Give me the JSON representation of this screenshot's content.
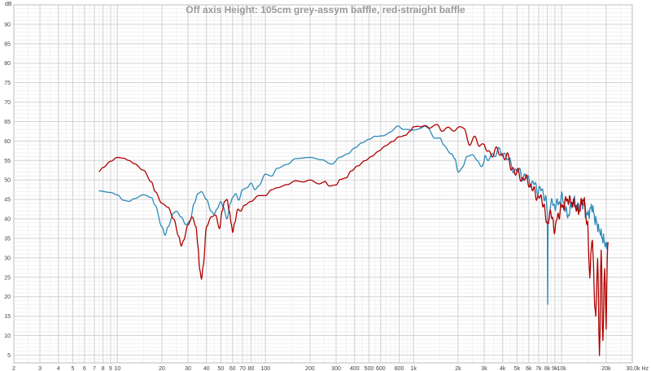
{
  "chart_data": {
    "type": "line",
    "title": "Off axis Height: 105cm grey-assym baffle, red-straight baffle",
    "xlabel": "Hz",
    "ylabel": "dB",
    "x_scale": "log",
    "xlim": [
      2,
      30000
    ],
    "ylim": [
      3,
      95
    ],
    "grid": true,
    "x_tick_labels": [
      {
        "value": 2,
        "label": "2"
      },
      {
        "value": 3,
        "label": "3"
      },
      {
        "value": 4,
        "label": "4"
      },
      {
        "value": 5,
        "label": "5"
      },
      {
        "value": 6,
        "label": "6"
      },
      {
        "value": 7,
        "label": "7"
      },
      {
        "value": 8,
        "label": "8"
      },
      {
        "value": 9,
        "label": "9"
      },
      {
        "value": 10,
        "label": "10"
      },
      {
        "value": 20,
        "label": "20"
      },
      {
        "value": 30,
        "label": "30"
      },
      {
        "value": 40,
        "label": "40"
      },
      {
        "value": 50,
        "label": "50"
      },
      {
        "value": 60,
        "label": "60"
      },
      {
        "value": 70,
        "label": "70"
      },
      {
        "value": 80,
        "label": "80"
      },
      {
        "value": 100,
        "label": "100"
      },
      {
        "value": 200,
        "label": "200"
      },
      {
        "value": 300,
        "label": "300"
      },
      {
        "value": 400,
        "label": "400"
      },
      {
        "value": 500,
        "label": "500"
      },
      {
        "value": 600,
        "label": "600"
      },
      {
        "value": 800,
        "label": "800"
      },
      {
        "value": 1000,
        "label": "1k"
      },
      {
        "value": 2000,
        "label": "2k"
      },
      {
        "value": 3000,
        "label": "3k"
      },
      {
        "value": 4000,
        "label": "4k"
      },
      {
        "value": 5000,
        "label": "5k"
      },
      {
        "value": 6000,
        "label": "6k"
      },
      {
        "value": 7000,
        "label": "7k"
      },
      {
        "value": 8000,
        "label": "8k"
      },
      {
        "value": 9000,
        "label": "9k"
      },
      {
        "value": 10000,
        "label": "10k"
      },
      {
        "value": 20000,
        "label": "20k"
      },
      {
        "value": 30000,
        "label": "30,0k Hz"
      }
    ],
    "y_ticks": [
      5,
      10,
      15,
      20,
      25,
      30,
      35,
      40,
      45,
      50,
      55,
      60,
      65,
      70,
      75,
      80,
      85,
      90
    ],
    "series": [
      {
        "color": "#2e8ab8",
        "points": [
          [
            7.5,
            47.2
          ],
          [
            9,
            46.8
          ],
          [
            10,
            46.2
          ],
          [
            11,
            44.8
          ],
          [
            12,
            44.5
          ],
          [
            13,
            45.2
          ],
          [
            15,
            46.2
          ],
          [
            17,
            45.5
          ],
          [
            18,
            43.5
          ],
          [
            20,
            38
          ],
          [
            21,
            35.8
          ],
          [
            22,
            38
          ],
          [
            24,
            41.5
          ],
          [
            25,
            42
          ],
          [
            27,
            40.5
          ],
          [
            29,
            38.5
          ],
          [
            31,
            39.5
          ],
          [
            33,
            44
          ],
          [
            35,
            46.5
          ],
          [
            37,
            47
          ],
          [
            40,
            45
          ],
          [
            43,
            42
          ],
          [
            45,
            41.2
          ],
          [
            47,
            42.5
          ],
          [
            50,
            44.5
          ],
          [
            52,
            43
          ],
          [
            55,
            40
          ],
          [
            58,
            44
          ],
          [
            60,
            45.5
          ],
          [
            63,
            46.5
          ],
          [
            66,
            44.8
          ],
          [
            70,
            47.5
          ],
          [
            75,
            48
          ],
          [
            80,
            49.2
          ],
          [
            85,
            47.5
          ],
          [
            90,
            48.5
          ],
          [
            100,
            51.5
          ],
          [
            110,
            51
          ],
          [
            120,
            53
          ],
          [
            140,
            54
          ],
          [
            160,
            55.5
          ],
          [
            200,
            55.8
          ],
          [
            240,
            55.2
          ],
          [
            280,
            54.2
          ],
          [
            320,
            56
          ],
          [
            360,
            56.8
          ],
          [
            400,
            58.2
          ],
          [
            450,
            59.5
          ],
          [
            500,
            60.5
          ],
          [
            550,
            61.5
          ],
          [
            620,
            61.8
          ],
          [
            700,
            62.5
          ],
          [
            780,
            63.5
          ],
          [
            850,
            62.5
          ],
          [
            950,
            62.8
          ],
          [
            1000,
            63
          ],
          [
            1100,
            63.3
          ],
          [
            1200,
            63.8
          ],
          [
            1250,
            63.5
          ],
          [
            1400,
            61
          ],
          [
            1500,
            60.5
          ],
          [
            1600,
            58.5
          ],
          [
            1800,
            57
          ],
          [
            1900,
            55.5
          ],
          [
            2000,
            52.2
          ],
          [
            2150,
            53.5
          ],
          [
            2300,
            55.5
          ],
          [
            2500,
            56.8
          ],
          [
            2700,
            55
          ],
          [
            2900,
            53.5
          ],
          [
            3100,
            55
          ],
          [
            3300,
            56.8
          ],
          [
            3600,
            56.5
          ],
          [
            4000,
            57.5
          ],
          [
            4300,
            55.5
          ],
          [
            4600,
            53.5
          ],
          [
            5000,
            52.2
          ],
          [
            5500,
            51.2
          ],
          [
            6000,
            50
          ],
          [
            6500,
            48.8
          ],
          [
            7000,
            47.5
          ],
          [
            7500,
            47
          ],
          [
            7800,
            45
          ],
          [
            8000,
            42
          ],
          [
            8050,
            18
          ],
          [
            8100,
            38
          ],
          [
            8400,
            44
          ],
          [
            9000,
            43.5
          ],
          [
            9500,
            44
          ],
          [
            10000,
            45.5
          ],
          [
            11000,
            41
          ],
          [
            12000,
            44.5
          ],
          [
            13000,
            43
          ],
          [
            14000,
            44
          ],
          [
            15000,
            41
          ],
          [
            16000,
            43
          ],
          [
            17000,
            39.5
          ],
          [
            18000,
            37
          ],
          [
            19000,
            35
          ],
          [
            20000,
            33
          ],
          [
            20500,
            34
          ]
        ]
      },
      {
        "color": "#b00000",
        "points": [
          [
            7.5,
            52.2
          ],
          [
            8,
            53.2
          ],
          [
            9,
            54.8
          ],
          [
            10,
            55.8
          ],
          [
            11,
            55.6
          ],
          [
            12,
            55
          ],
          [
            13,
            54.2
          ],
          [
            15,
            52.5
          ],
          [
            17,
            49.5
          ],
          [
            18,
            47
          ],
          [
            20,
            44
          ],
          [
            22,
            43
          ],
          [
            24,
            40
          ],
          [
            26,
            35.5
          ],
          [
            27,
            33
          ],
          [
            28,
            34.5
          ],
          [
            30,
            38.5
          ],
          [
            32,
            40.5
          ],
          [
            34,
            38
          ],
          [
            35,
            33
          ],
          [
            36,
            27
          ],
          [
            37,
            24.5
          ],
          [
            38,
            28
          ],
          [
            40,
            38
          ],
          [
            43,
            40.5
          ],
          [
            46,
            41
          ],
          [
            49,
            37.5
          ],
          [
            51,
            42
          ],
          [
            53,
            44.5
          ],
          [
            55,
            45
          ],
          [
            57,
            42
          ],
          [
            59,
            38.5
          ],
          [
            60,
            36.5
          ],
          [
            62,
            39
          ],
          [
            65,
            42.5
          ],
          [
            68,
            42
          ],
          [
            72,
            43.5
          ],
          [
            80,
            44.5
          ],
          [
            90,
            46
          ],
          [
            100,
            46
          ],
          [
            110,
            47.5
          ],
          [
            120,
            48
          ],
          [
            140,
            48.8
          ],
          [
            160,
            49.8
          ],
          [
            180,
            49.5
          ],
          [
            200,
            50
          ],
          [
            230,
            49
          ],
          [
            250,
            49.5
          ],
          [
            270,
            48.2
          ],
          [
            300,
            48.5
          ],
          [
            320,
            50
          ],
          [
            350,
            50.5
          ],
          [
            380,
            52.5
          ],
          [
            420,
            54
          ],
          [
            470,
            55.5
          ],
          [
            520,
            56.5
          ],
          [
            580,
            57.5
          ],
          [
            650,
            58.5
          ],
          [
            720,
            59.5
          ],
          [
            800,
            61
          ],
          [
            880,
            61.5
          ],
          [
            950,
            62.5
          ],
          [
            1000,
            63.5
          ],
          [
            1100,
            63.8
          ],
          [
            1200,
            64.5
          ],
          [
            1300,
            63.5
          ],
          [
            1450,
            63.8
          ],
          [
            1550,
            62.5
          ],
          [
            1700,
            63.5
          ],
          [
            1850,
            62.8
          ],
          [
            2000,
            63.8
          ],
          [
            2200,
            62.8
          ],
          [
            2400,
            59
          ],
          [
            2600,
            61.5
          ],
          [
            2800,
            58.5
          ],
          [
            3000,
            59
          ],
          [
            3200,
            57.5
          ],
          [
            3500,
            56.8
          ],
          [
            3800,
            57.2
          ],
          [
            4200,
            56
          ],
          [
            4600,
            53.5
          ],
          [
            5000,
            51.5
          ],
          [
            5500,
            50.5
          ],
          [
            6000,
            49.5
          ],
          [
            6500,
            47
          ],
          [
            7000,
            45.5
          ],
          [
            7500,
            44.5
          ],
          [
            8000,
            38
          ],
          [
            8300,
            42
          ],
          [
            8600,
            40
          ],
          [
            9000,
            37.5
          ],
          [
            9500,
            41
          ],
          [
            10000,
            43
          ],
          [
            11000,
            45
          ],
          [
            12000,
            44
          ],
          [
            13000,
            42
          ],
          [
            14000,
            45
          ],
          [
            15000,
            38
          ],
          [
            15500,
            25
          ],
          [
            16000,
            35
          ],
          [
            17000,
            15
          ],
          [
            17500,
            30
          ],
          [
            18000,
            5
          ],
          [
            18500,
            32
          ],
          [
            19000,
            8
          ],
          [
            19500,
            28
          ],
          [
            20000,
            12
          ],
          [
            20300,
            30
          ],
          [
            20600,
            34
          ]
        ]
      }
    ]
  }
}
